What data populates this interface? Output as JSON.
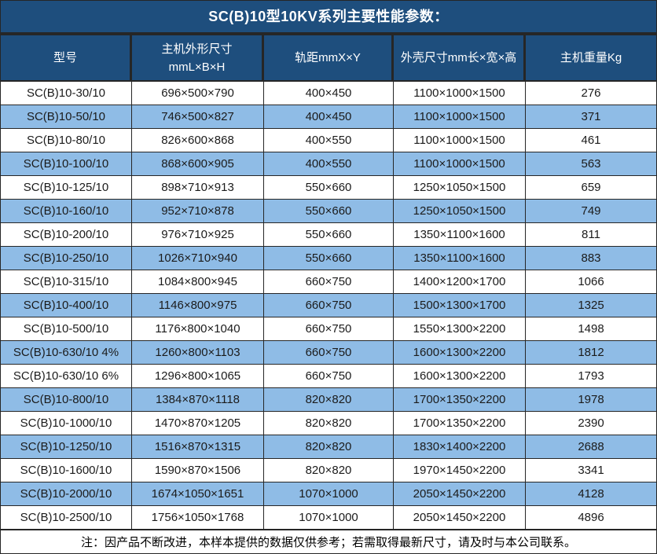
{
  "title": "SC(B)10型10KV系列主要性能参数：",
  "footer_note": "注：因产品不断改进，本样本提供的数据仅供参考；若需取得最新尺寸，请及时与本公司联系。",
  "colors": {
    "header_bg": "#1E4E7D",
    "row_bg": "#FFFFFF",
    "row_alt_bg": "#8FBCE6",
    "border": "#262626",
    "header_text": "#FFFFFF",
    "cell_text": "#1B1B1B"
  },
  "table": {
    "columns": [
      {
        "label": "型号"
      },
      {
        "label": "主机外形尺寸",
        "label2": "mmL×B×H"
      },
      {
        "label": "轨距mmX×Y"
      },
      {
        "label": "外壳尺寸mm长×宽×高"
      },
      {
        "label": "主机重量Kg"
      }
    ],
    "rows": [
      [
        "SC(B)10-30/10",
        "696×500×790",
        "400×450",
        "1100×1000×1500",
        "276"
      ],
      [
        "SC(B)10-50/10",
        "746×500×827",
        "400×450",
        "1100×1000×1500",
        "371"
      ],
      [
        "SC(B)10-80/10",
        "826×600×868",
        "400×550",
        "1100×1000×1500",
        "461"
      ],
      [
        "SC(B)10-100/10",
        "868×600×905",
        "400×550",
        "1100×1000×1500",
        "563"
      ],
      [
        "SC(B)10-125/10",
        "898×710×913",
        "550×660",
        "1250×1050×1500",
        "659"
      ],
      [
        "SC(B)10-160/10",
        "952×710×878",
        "550×660",
        "1250×1050×1500",
        "749"
      ],
      [
        "SC(B)10-200/10",
        "976×710×925",
        "550×660",
        "1350×1100×1600",
        "811"
      ],
      [
        "SC(B)10-250/10",
        "1026×710×940",
        "550×660",
        "1350×1100×1600",
        "883"
      ],
      [
        "SC(B)10-315/10",
        "1084×800×945",
        "660×750",
        "1400×1200×1700",
        "1066"
      ],
      [
        "SC(B)10-400/10",
        "1146×800×975",
        "660×750",
        "1500×1300×1700",
        "1325"
      ],
      [
        "SC(B)10-500/10",
        "1176×800×1040",
        "660×750",
        "1550×1300×2200",
        "1498"
      ],
      [
        "SC(B)10-630/10 4%",
        "1260×800×1103",
        "660×750",
        "1600×1300×2200",
        "1812"
      ],
      [
        "SC(B)10-630/10 6%",
        "1296×800×1065",
        "660×750",
        "1600×1300×2200",
        "1793"
      ],
      [
        "SC(B)10-800/10",
        "1384×870×1118",
        "820×820",
        "1700×1350×2200",
        "1978"
      ],
      [
        "SC(B)10-1000/10",
        "1470×870×1205",
        "820×820",
        "1700×1350×2200",
        "2390"
      ],
      [
        "SC(B)10-1250/10",
        "1516×870×1315",
        "820×820",
        "1830×1400×2200",
        "2688"
      ],
      [
        "SC(B)10-1600/10",
        "1590×870×1506",
        "820×820",
        "1970×1450×2200",
        "3341"
      ],
      [
        "SC(B)10-2000/10",
        "1674×1050×1651",
        "1070×1000",
        "2050×1450×2200",
        "4128"
      ],
      [
        "SC(B)10-2500/10",
        "1756×1050×1768",
        "1070×1000",
        "2050×1450×2200",
        "4896"
      ]
    ]
  }
}
